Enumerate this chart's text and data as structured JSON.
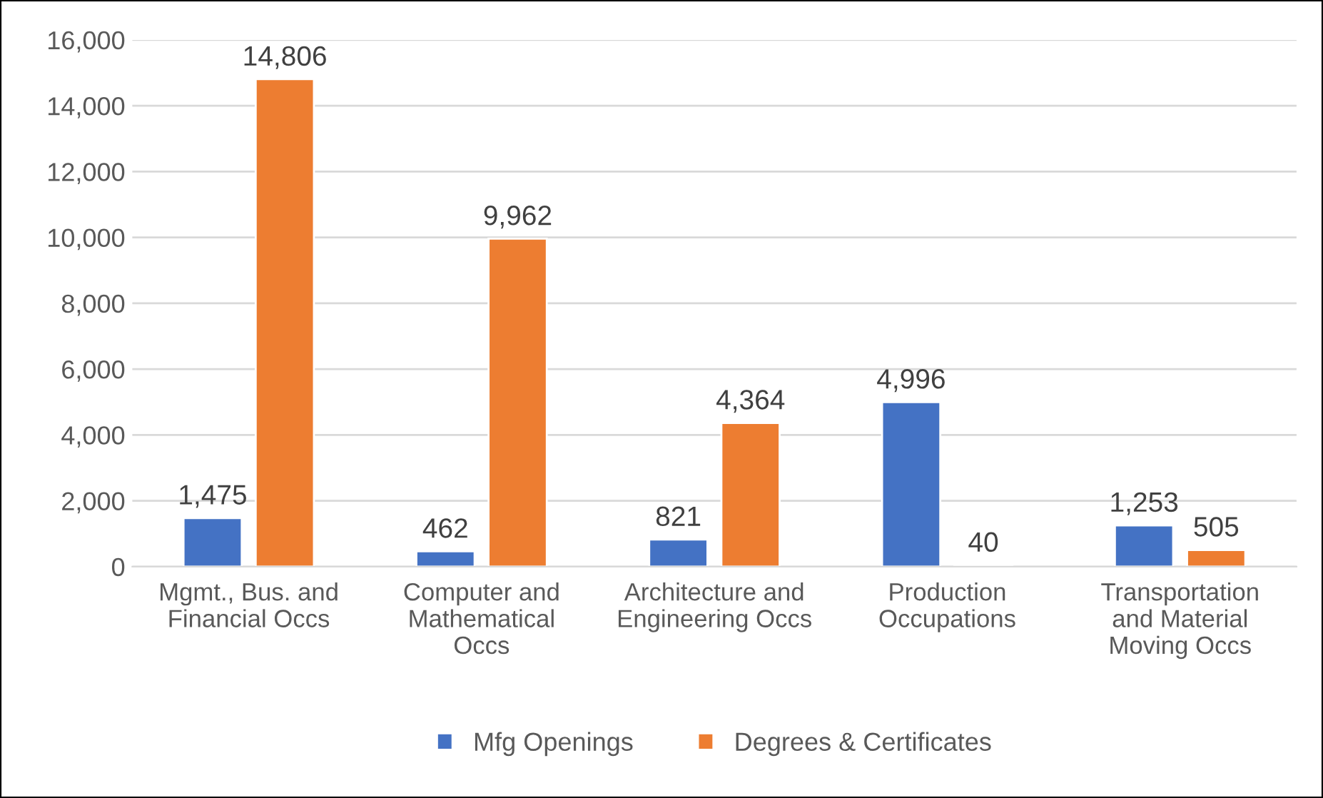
{
  "chart_data": {
    "type": "bar",
    "categories": [
      "Mgmt., Bus. and\nFinancial Occs",
      "Computer and\nMathematical\nOccs",
      "Architecture and\nEngineering Occs",
      "Production\nOccupations",
      "Transportation\nand Material\nMoving Occs"
    ],
    "series": [
      {
        "name": "Mfg Openings",
        "color": "#4472c4",
        "values": [
          1475,
          462,
          821,
          4996,
          1253
        ],
        "value_labels": [
          "1,475",
          "462",
          "821",
          "4,996",
          "1,253"
        ]
      },
      {
        "name": "Degrees & Certificates",
        "color": "#ed7d31",
        "values": [
          14806,
          9962,
          4364,
          40,
          505
        ],
        "value_labels": [
          "14,806",
          "9,962",
          "4,364",
          "40",
          "505"
        ]
      }
    ],
    "ylim": [
      0,
      16000
    ],
    "yticks": [
      {
        "value": 0,
        "label": "0"
      },
      {
        "value": 2000,
        "label": "2,000"
      },
      {
        "value": 4000,
        "label": "4,000"
      },
      {
        "value": 6000,
        "label": "6,000"
      },
      {
        "value": 8000,
        "label": "8,000"
      },
      {
        "value": 10000,
        "label": "10,000"
      },
      {
        "value": 12000,
        "label": "12,000"
      },
      {
        "value": 14000,
        "label": "14,000"
      },
      {
        "value": 16000,
        "label": "16,000"
      }
    ],
    "grid": "y",
    "legend": "bottom"
  }
}
